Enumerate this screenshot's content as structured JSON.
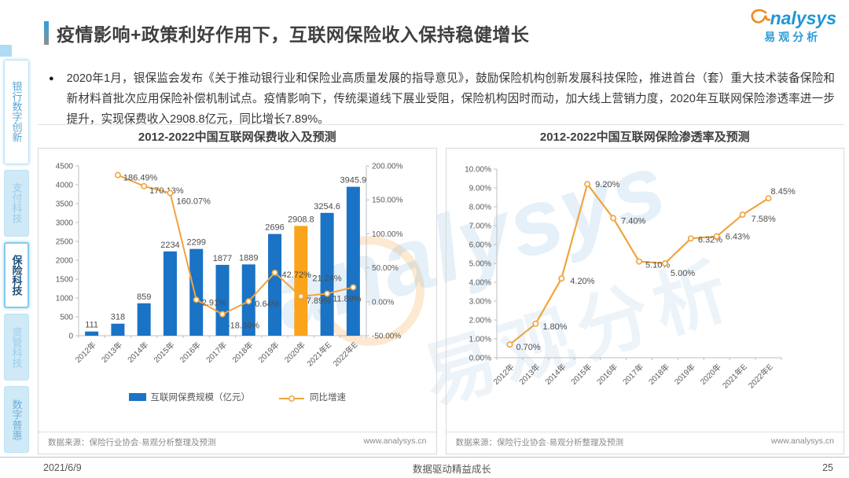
{
  "header": {
    "title": "疫情影响+政策利好作用下，互联网保险收入保持稳健增长",
    "logo": {
      "brand_mark": "a",
      "brand_text": "nalysys",
      "brand_cn": "易观分析"
    }
  },
  "watermark": {
    "text_en": "analysys",
    "text_cn": "易观分析"
  },
  "sidebar": {
    "items": [
      {
        "label": "银行数字创新",
        "active": false
      },
      {
        "label": "支付科技",
        "active": false
      },
      {
        "label": "保险科技",
        "active": true
      },
      {
        "label": "资管科技",
        "active": false
      },
      {
        "label": "数字普惠",
        "active": false
      }
    ]
  },
  "intro": {
    "marker": "●",
    "text": "2020年1月，银保监会发布《关于推动银行业和保险业高质量发展的指导意见》，鼓励保险机构创新发展科技保险，推进首台（套）重大技术装备保险和新材料首批次应用保险补偿机制试点。疫情影响下，传统渠道线下展业受阻，保险机构因时而动，加大线上营销力度，2020年互联网保险渗透率进一步提升，实现保费收入2908.8亿元，同比增长7.89%。"
  },
  "panels": [
    {
      "title": "2012-2022中国互联网保费收入及预测",
      "source": "数据来源：保险行业协会·易观分析整理及预测",
      "website": "www.analysys.cn"
    },
    {
      "title": "2012-2022中国互联网保险渗透率及预测",
      "source": "数据来源：保险行业协会·易观分析整理及预测",
      "website": "www.analysys.cn"
    }
  ],
  "colors": {
    "bar": "#1a73c4",
    "bar_highlight": "#fba31b",
    "line": "#f0a43e",
    "axis": "#bfbfbf",
    "label": "#595959",
    "value_label": "#4d4d4d"
  },
  "chart_data": [
    {
      "type": "bar",
      "title": "2012-2022中国互联网保费收入及预测",
      "categories": [
        "2012年",
        "2013年",
        "2014年",
        "2015年",
        "2016年",
        "2017年",
        "2018年",
        "2019年",
        "2020年",
        "2021年E",
        "2022年E"
      ],
      "series": [
        {
          "name": "互联网保费规模（亿元）",
          "type": "bar",
          "values": [
            111,
            318,
            859,
            2234,
            2299,
            1877,
            1889,
            2696,
            2908.8,
            3254.6,
            3945.9
          ],
          "labels": [
            "111",
            "318",
            "859",
            "2234",
            "2299",
            "1877",
            "1889",
            "2696",
            "2908.8",
            "3254.6",
            "3945.9"
          ],
          "highlight_index": 8
        },
        {
          "name": "同比增速",
          "type": "line",
          "axis": "right",
          "values": [
            null,
            186.49,
            170.13,
            160.07,
            2.91,
            -18.36,
            0.64,
            42.72,
            7.89,
            11.89,
            21.24
          ],
          "labels": [
            null,
            "186.49%",
            "170.13%",
            "160.07%",
            "2.91%",
            "-18.36%",
            "0.64%",
            "42.72%",
            "7.89%",
            "11.89%",
            "21.24%"
          ]
        }
      ],
      "ylim": [
        0,
        4500
      ],
      "ytick_step": 500,
      "y2lim": [
        -50,
        200
      ],
      "y2tick_step": 50,
      "grid": false,
      "legend_position": "bottom"
    },
    {
      "type": "line",
      "title": "2012-2022中国互联网保险渗透率及预测",
      "categories": [
        "2012年",
        "2013年",
        "2014年",
        "2015年",
        "2016年",
        "2017年",
        "2018年",
        "2019年",
        "2020年",
        "2021年E",
        "2022年E"
      ],
      "values": [
        0.7,
        1.8,
        4.2,
        9.2,
        7.4,
        5.1,
        5.0,
        6.32,
        6.43,
        7.58,
        8.45
      ],
      "labels": [
        "0.70%",
        "1.80%",
        "4.20%",
        "9.20%",
        "7.40%",
        "5.10%",
        "5.00%",
        "6.32%",
        "6.43%",
        "7.58%",
        "8.45%"
      ],
      "ylim": [
        0,
        10
      ],
      "ytick_step": 1,
      "grid": false,
      "legend_position": "none"
    }
  ],
  "footer": {
    "date": "2021/6/9",
    "slogan": "数据驱动精益成长",
    "page": "25"
  }
}
